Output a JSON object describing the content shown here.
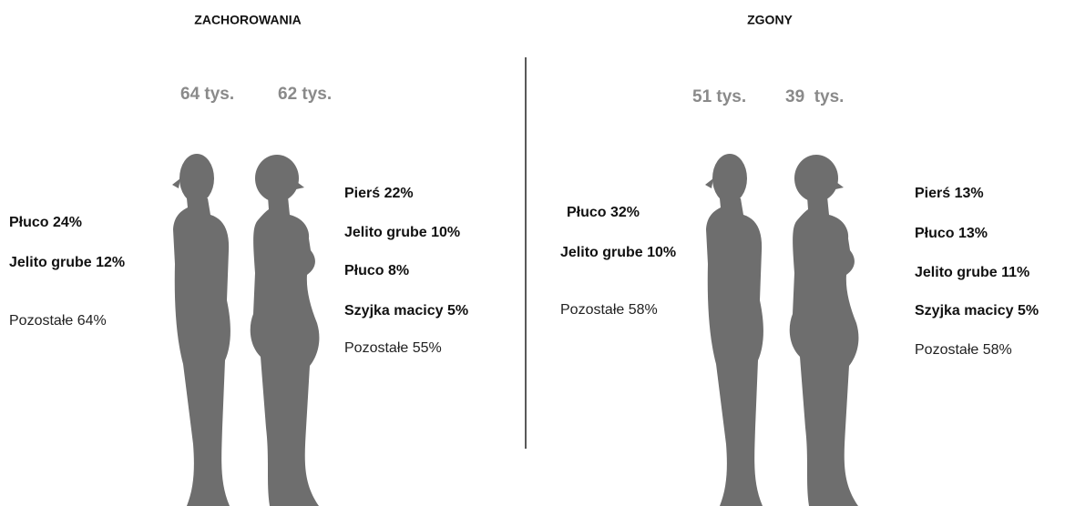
{
  "sections": [
    {
      "title": "ZACHOROWANIA",
      "male": {
        "total": "64 tys.",
        "items": [
          "Płuco 24%",
          "Jelito grube 12%"
        ],
        "other": "Pozostałe 64%"
      },
      "female": {
        "total": "62 tys.",
        "items": [
          "Pierś 22%",
          "Jelito grube 10%",
          "Płuco 8%",
          "Szyjka macicy 5%"
        ],
        "other": "Pozostałe 55%"
      }
    },
    {
      "title": "ZGONY",
      "male": {
        "total": "51 tys.",
        "items": [
          "Płuco 32%",
          "Jelito grube 10%"
        ],
        "other": "Pozostałe 58%"
      },
      "female": {
        "total": "39  tys.",
        "items": [
          "Pierś 13%",
          "Płuco 13%",
          "Jelito grube 11%",
          "Szyjka macicy 5%"
        ],
        "other": "Pozostałe 58%"
      }
    }
  ]
}
